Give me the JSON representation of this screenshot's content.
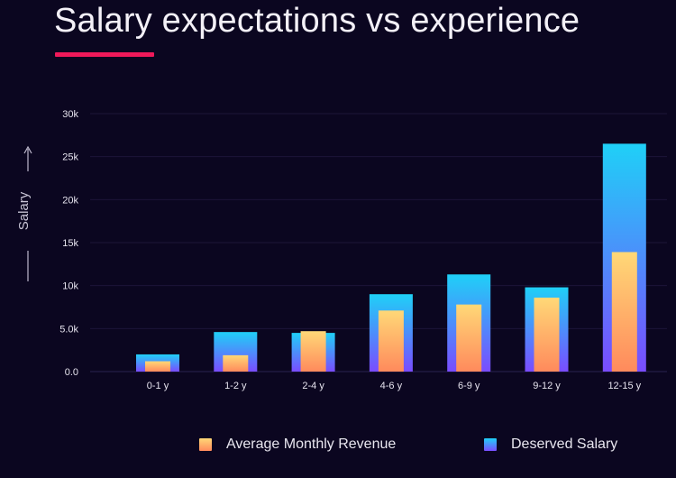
{
  "title": "Salary expectations vs experience",
  "colors": {
    "background": "#0b0620",
    "accent_underline": "#f0195a",
    "avg_top": "#ffd877",
    "avg_bottom": "#ff8a5c",
    "des_top": "#1fd0f7",
    "des_bottom": "#7a4cff"
  },
  "chart_data": {
    "type": "bar",
    "title": "Salary expectations vs experience",
    "ylabel": "Salary",
    "xlabel": "",
    "categories": [
      "0-1 y",
      "1-2 y",
      "2-4 y",
      "4-6 y",
      "6-9 y",
      "9-12 y",
      "12-15 y"
    ],
    "yticks": [
      {
        "value": 0,
        "label": "0.0"
      },
      {
        "value": 5000,
        "label": "5.0k"
      },
      {
        "value": 10000,
        "label": "10k"
      },
      {
        "value": 15000,
        "label": "15k"
      },
      {
        "value": 20000,
        "label": "20k"
      },
      {
        "value": 25000,
        "label": "25k"
      },
      {
        "value": 30000,
        "label": "30k"
      }
    ],
    "ylim": [
      0,
      30000
    ],
    "grid": true,
    "legend_position": "bottom",
    "series": [
      {
        "name": "Average Monthly Revenue",
        "values": [
          1200,
          1900,
          4700,
          7100,
          7800,
          8600,
          13900
        ]
      },
      {
        "name": "Deserved Salary",
        "values": [
          2000,
          4600,
          4500,
          9000,
          11300,
          9800,
          26500
        ]
      }
    ]
  },
  "legend": {
    "avg_label": "Average Monthly Revenue",
    "des_label": "Deserved Salary"
  }
}
